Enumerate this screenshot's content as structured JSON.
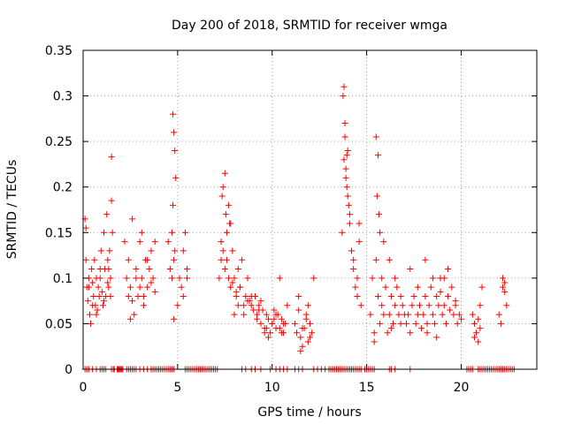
{
  "chart_data": {
    "type": "scatter",
    "title": "Day 200 of 2018, SRMTID for receiver wmga",
    "xlabel": "GPS time / hours",
    "ylabel": "SRMTID / TECUs",
    "xlim": [
      0,
      24
    ],
    "ylim": [
      0,
      0.35
    ],
    "xticks": [
      0,
      5,
      10,
      15,
      20
    ],
    "xtick_labels": [
      "0",
      "5",
      "10",
      "15",
      "20"
    ],
    "yticks": [
      0,
      0.05,
      0.1,
      0.15,
      0.2,
      0.25,
      0.3,
      0.35
    ],
    "ytick_labels": [
      "0",
      "0.05",
      "0.1",
      "0.15",
      "0.2",
      "0.25",
      "0.3",
      "0.35"
    ],
    "grid": true,
    "marker": "plus",
    "marker_color": "#ff0000",
    "series": [
      {
        "name": "SRMTID",
        "x": [
          0.1,
          0.15,
          0.2,
          0.25,
          0.3,
          0.35,
          0.4,
          0.45,
          0.5,
          0.55,
          0.6,
          0.65,
          0.7,
          0.75,
          0.8,
          0.85,
          0.9,
          0.95,
          1.0,
          1.05,
          1.1,
          1.15,
          1.2,
          1.25,
          1.3,
          1.35,
          1.4,
          1.45,
          1.5,
          1.55,
          0.15,
          0.3,
          0.5,
          0.7,
          0.9,
          1.1,
          1.3,
          1.5,
          1.35,
          1.45,
          2.2,
          2.3,
          2.4,
          2.5,
          2.6,
          2.7,
          2.8,
          2.9,
          3.0,
          3.1,
          3.2,
          3.3,
          3.4,
          3.5,
          3.6,
          3.7,
          3.8,
          2.4,
          2.6,
          2.8,
          3.0,
          3.2,
          3.4,
          3.6,
          3.8,
          2.5,
          3.1,
          4.5,
          4.6,
          4.7,
          4.75,
          4.8,
          4.85,
          4.9,
          5.0,
          5.1,
          5.2,
          5.3,
          5.4,
          5.5,
          4.75,
          4.8,
          4.85,
          4.8,
          4.7,
          5.3,
          5.5,
          7.2,
          7.3,
          7.4,
          7.5,
          7.6,
          7.7,
          7.8,
          7.9,
          8.0,
          8.1,
          8.2,
          8.3,
          8.4,
          8.5,
          8.6,
          8.7,
          8.8,
          8.9,
          9.0,
          7.3,
          7.5,
          7.7,
          7.9,
          8.1,
          8.3,
          8.5,
          8.7,
          8.9,
          7.4,
          7.6,
          7.8,
          8.0,
          8.2,
          7.35,
          7.55,
          7.75,
          9.1,
          9.2,
          9.3,
          9.4,
          9.5,
          9.6,
          9.7,
          9.8,
          9.9,
          10.0,
          10.1,
          10.2,
          10.3,
          10.4,
          10.5,
          10.6,
          10.7,
          10.8,
          9.2,
          9.4,
          9.6,
          9.8,
          10.0,
          10.2,
          10.4,
          10.6,
          9.3,
          9.7,
          10.1,
          10.5,
          11.2,
          11.3,
          11.4,
          11.5,
          11.6,
          11.7,
          11.8,
          11.9,
          12.0,
          12.1,
          12.2,
          11.4,
          11.6,
          11.8,
          12.0,
          11.5,
          11.9,
          13.7,
          13.75,
          13.8,
          13.85,
          13.9,
          13.95,
          14.0,
          14.05,
          14.1,
          14.2,
          14.3,
          14.4,
          14.5,
          14.6,
          14.7,
          13.8,
          13.9,
          14.0,
          14.1,
          13.85,
          13.95,
          14.3,
          14.5,
          14.6,
          15.2,
          15.3,
          15.4,
          15.5,
          15.6,
          15.7,
          15.8,
          15.9,
          16.0,
          16.1,
          16.2,
          16.3,
          16.4,
          16.5,
          16.6,
          16.7,
          16.8,
          16.9,
          17.0,
          15.5,
          15.6,
          15.55,
          15.65,
          15.7,
          15.9,
          16.2,
          16.5,
          16.8,
          15.4,
          15.8,
          16.3,
          17.1,
          17.2,
          17.3,
          17.4,
          17.5,
          17.6,
          17.7,
          17.8,
          17.9,
          18.0,
          18.1,
          18.2,
          18.3,
          18.4,
          18.5,
          18.6,
          18.7,
          18.8,
          18.9,
          19.0,
          19.1,
          19.2,
          19.3,
          19.4,
          19.5,
          19.6,
          19.7,
          19.8,
          19.9,
          20.0,
          17.3,
          17.7,
          18.1,
          18.5,
          18.9,
          19.3,
          19.7,
          18.2,
          18.7,
          19.1,
          20.6,
          20.7,
          20.8,
          20.9,
          21.0,
          21.1,
          20.7,
          20.9,
          21.0,
          22.0,
          22.1,
          22.2,
          22.3,
          22.4,
          22.2,
          22.3
        ],
        "y": [
          0.165,
          0.12,
          0.09,
          0.075,
          0.1,
          0.06,
          0.05,
          0.11,
          0.095,
          0.08,
          0.12,
          0.07,
          0.1,
          0.065,
          0.09,
          0.08,
          0.1,
          0.13,
          0.085,
          0.07,
          0.15,
          0.11,
          0.08,
          0.17,
          0.12,
          0.09,
          0.13,
          0.1,
          0.185,
          0.15,
          0.155,
          0.09,
          0.07,
          0.06,
          0.11,
          0.075,
          0.095,
          0.233,
          0.11,
          0.08,
          0.14,
          0.1,
          0.08,
          0.09,
          0.165,
          0.06,
          0.11,
          0.08,
          0.14,
          0.1,
          0.07,
          0.12,
          0.09,
          0.11,
          0.13,
          0.1,
          0.14,
          0.12,
          0.075,
          0.1,
          0.09,
          0.08,
          0.12,
          0.095,
          0.085,
          0.055,
          0.15,
          0.14,
          0.11,
          0.1,
          0.28,
          0.26,
          0.24,
          0.21,
          0.07,
          0.1,
          0.09,
          0.13,
          0.15,
          0.11,
          0.18,
          0.12,
          0.13,
          0.055,
          0.15,
          0.08,
          0.1,
          0.1,
          0.14,
          0.2,
          0.215,
          0.12,
          0.18,
          0.16,
          0.13,
          0.1,
          0.08,
          0.11,
          0.09,
          0.12,
          0.06,
          0.08,
          0.1,
          0.075,
          0.07,
          0.065,
          0.12,
          0.11,
          0.1,
          0.095,
          0.085,
          0.09,
          0.07,
          0.075,
          0.08,
          0.13,
          0.15,
          0.09,
          0.06,
          0.07,
          0.19,
          0.17,
          0.16,
          0.08,
          0.06,
          0.07,
          0.05,
          0.065,
          0.045,
          0.06,
          0.055,
          0.04,
          0.05,
          0.065,
          0.045,
          0.06,
          0.1,
          0.055,
          0.04,
          0.05,
          0.07,
          0.055,
          0.075,
          0.04,
          0.035,
          0.05,
          0.06,
          0.045,
          0.05,
          0.065,
          0.045,
          0.055,
          0.04,
          0.05,
          0.04,
          0.08,
          0.035,
          0.025,
          0.045,
          0.06,
          0.03,
          0.05,
          0.04,
          0.1,
          0.065,
          0.045,
          0.055,
          0.035,
          0.02,
          0.07,
          0.15,
          0.3,
          0.31,
          0.27,
          0.22,
          0.2,
          0.24,
          0.18,
          0.16,
          0.13,
          0.11,
          0.09,
          0.1,
          0.14,
          0.07,
          0.23,
          0.21,
          0.19,
          0.17,
          0.255,
          0.235,
          0.12,
          0.08,
          0.16,
          0.06,
          0.1,
          0.04,
          0.12,
          0.08,
          0.05,
          0.07,
          0.06,
          0.09,
          0.04,
          0.06,
          0.08,
          0.05,
          0.07,
          0.09,
          0.06,
          0.05,
          0.07,
          0.06,
          0.255,
          0.235,
          0.19,
          0.17,
          0.15,
          0.14,
          0.12,
          0.1,
          0.08,
          0.03,
          0.1,
          0.045,
          0.05,
          0.06,
          0.04,
          0.07,
          0.08,
          0.05,
          0.06,
          0.07,
          0.045,
          0.06,
          0.08,
          0.05,
          0.07,
          0.09,
          0.06,
          0.05,
          0.08,
          0.07,
          0.1,
          0.06,
          0.07,
          0.05,
          0.08,
          0.065,
          0.09,
          0.06,
          0.07,
          0.05,
          0.06,
          0.055,
          0.11,
          0.09,
          0.12,
          0.1,
          0.085,
          0.11,
          0.075,
          0.04,
          0.035,
          0.1,
          0.06,
          0.05,
          0.04,
          0.03,
          0.07,
          0.09,
          0.035,
          0.055,
          0.045,
          0.06,
          0.05,
          0.1,
          0.085,
          0.07,
          0.09,
          0.095
        ]
      }
    ],
    "zero_marks_x": [
      0.1,
      0.2,
      0.3,
      0.5,
      0.7,
      0.9,
      1.0,
      1.1,
      1.2,
      1.5,
      1.6,
      1.65,
      1.8,
      1.85,
      1.9,
      1.95,
      2.0,
      2.05,
      2.1,
      2.3,
      2.4,
      2.5,
      2.6,
      2.7,
      2.8,
      3.0,
      3.2,
      3.4,
      3.6,
      3.7,
      3.8,
      3.9,
      4.0,
      4.1,
      4.2,
      4.3,
      4.4,
      4.5,
      4.6,
      4.7,
      4.8,
      5.4,
      5.5,
      5.6,
      5.7,
      5.8,
      5.9,
      6.0,
      6.1,
      6.2,
      6.3,
      6.4,
      6.5,
      6.6,
      6.7,
      6.8,
      6.9,
      7.0,
      7.1,
      8.4,
      8.6,
      8.9,
      9.1,
      9.4,
      9.9,
      10.2,
      10.4,
      10.6,
      10.8,
      11.2,
      11.4,
      11.6,
      12.2,
      12.4,
      12.6,
      12.8,
      13.0,
      13.1,
      13.2,
      13.3,
      13.4,
      13.5,
      13.6,
      13.7,
      13.8,
      13.9,
      14.0,
      14.1,
      14.2,
      14.3,
      14.4,
      14.5,
      14.6,
      14.7,
      14.9,
      15.0,
      15.1,
      15.2,
      15.3,
      15.4,
      16.2,
      16.3,
      16.5,
      17.3,
      20.3,
      20.4,
      20.5,
      20.6,
      20.9,
      21.0,
      21.1,
      21.2,
      21.3,
      21.4,
      21.5,
      21.6,
      21.7,
      21.8,
      21.9,
      22.0,
      22.1,
      22.2,
      22.3,
      22.4,
      22.5,
      22.6,
      22.7,
      22.8
    ]
  }
}
